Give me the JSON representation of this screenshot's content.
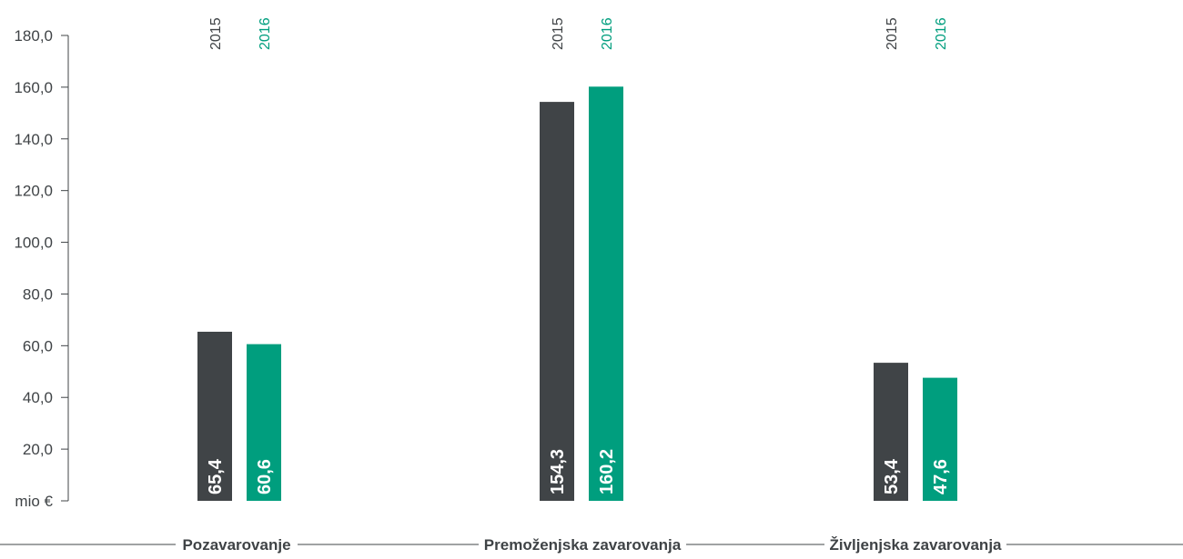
{
  "chart_data": {
    "type": "bar",
    "categories": [
      "Pozavarovanje",
      "Premoženjska zavarovanja",
      "Življenjska zavarovanja"
    ],
    "series": [
      {
        "name": "2015",
        "color": "#404447",
        "values": [
          65.4,
          154.3,
          53.4
        ],
        "value_labels": [
          "65,4",
          "154,3",
          "53,4"
        ]
      },
      {
        "name": "2016",
        "color": "#009e7e",
        "values": [
          60.6,
          160.2,
          47.6
        ],
        "value_labels": [
          "60,6",
          "160,2",
          "47,6"
        ]
      }
    ],
    "y_ticks": [
      0,
      20,
      40,
      60,
      80,
      100,
      120,
      140,
      160,
      180
    ],
    "y_tick_labels": [
      "mio €",
      "20,0",
      "40,0",
      "60,0",
      "80,0",
      "100,0",
      "120,0",
      "140,0",
      "160,0",
      "180,0"
    ],
    "ylim": [
      0,
      180
    ],
    "legend": "above each bar, rotated",
    "grid": false,
    "colors": {
      "axis": "#404447",
      "text": "#3f4346"
    }
  }
}
